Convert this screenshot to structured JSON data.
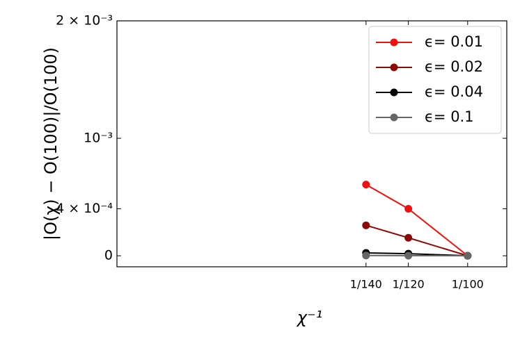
{
  "chart_data": {
    "type": "line",
    "x_label": "χ⁻¹",
    "y_label": "|O(χ) − O(100)|/O(100)",
    "x": [
      0.007142857,
      0.008333333,
      0.01
    ],
    "xlim": [
      0.00014,
      0.0111
    ],
    "xticks": [
      {
        "value": 0.007142857,
        "label": "1/140"
      },
      {
        "value": 0.008333333,
        "label": "1/120"
      },
      {
        "value": 0.01,
        "label": "1/100"
      }
    ],
    "ylim": [
      -9.4e-05,
      0.002
    ],
    "yticks": [
      {
        "value": 0,
        "label": "0"
      },
      {
        "value": 0.0004,
        "label": "4 × 10⁻⁴"
      },
      {
        "value": 0.001,
        "label": "10⁻³"
      },
      {
        "value": 0.002,
        "label": "2 × 10⁻³"
      }
    ],
    "legend": "upper right",
    "series": [
      {
        "name": "ϵ= 0.01",
        "color": "#f0100c",
        "values": [
          0.000606,
          0.0004,
          0
        ]
      },
      {
        "name": "ϵ= 0.02",
        "color": "#8b0a05",
        "values": [
          0.000259,
          0.000153,
          0
        ]
      },
      {
        "name": "ϵ= 0.04",
        "color": "#000000",
        "values": [
          2.4e-05,
          1.8e-05,
          0
        ]
      },
      {
        "name": "ϵ= 0.1",
        "color": "#666666",
        "values": [
          2e-06,
          1e-06,
          0
        ]
      }
    ]
  }
}
